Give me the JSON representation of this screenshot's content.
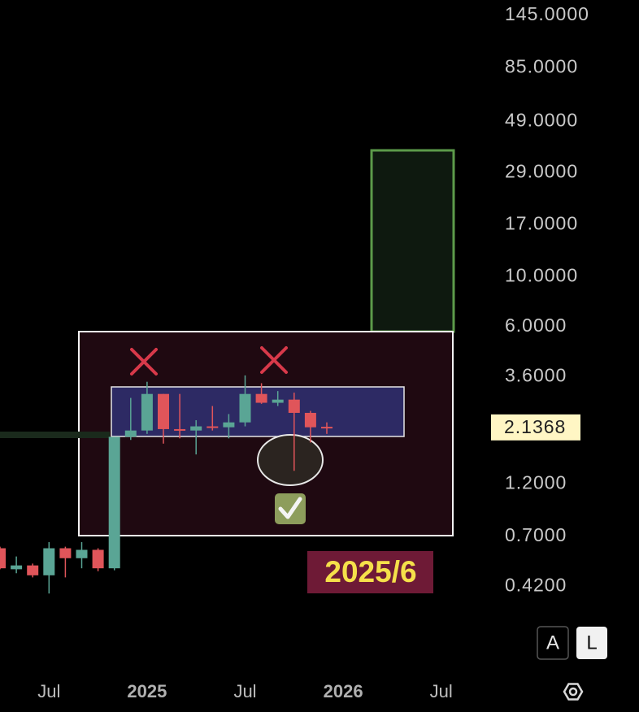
{
  "chart_data": {
    "type": "candlestick",
    "x": [
      "2024-04",
      "2024-05",
      "2024-06",
      "2024-07",
      "2024-08",
      "2024-09",
      "2024-10",
      "2024-11",
      "2024-12",
      "2025-01",
      "2025-02",
      "2025-03",
      "2025-04",
      "2025-05",
      "2025-06",
      "2025-07",
      "2025-08",
      "2025-09",
      "2025-10",
      "2025-11",
      "2025-12"
    ],
    "open": [
      0.62,
      0.5,
      0.52,
      0.47,
      0.62,
      0.56,
      0.61,
      0.505,
      1.94,
      2.07,
      3.01,
      2.1,
      2.07,
      2.16,
      2.14,
      2.25,
      3.01,
      2.75,
      2.84,
      2.48,
      2.15
    ],
    "high": [
      0.63,
      0.57,
      0.53,
      0.66,
      0.63,
      0.66,
      0.62,
      1.94,
      2.89,
      3.41,
      3.01,
      3.01,
      2.3,
      2.66,
      2.45,
      3.64,
      3.36,
      3.1,
      3.05,
      2.53,
      2.25
    ],
    "low": [
      0.5,
      0.48,
      0.46,
      0.39,
      0.46,
      0.505,
      0.49,
      0.495,
      1.88,
      2.0,
      1.81,
      1.91,
      1.62,
      2.07,
      1.91,
      2.16,
      2.72,
      2.66,
      1.37,
      1.83,
      2.0
    ],
    "close": [
      0.505,
      0.52,
      0.47,
      0.62,
      0.56,
      0.61,
      0.505,
      1.94,
      2.07,
      3.01,
      2.1,
      2.07,
      2.16,
      2.14,
      2.25,
      3.01,
      2.75,
      2.84,
      2.48,
      2.14,
      2.14
    ],
    "up_color": "#5aa595",
    "down_color": "#e0555a",
    "log_scale": true,
    "ylim": [
      0.17,
      170
    ],
    "yticks": [
      {
        "value": 145,
        "label": "145.0000"
      },
      {
        "value": 85,
        "label": "85.0000"
      },
      {
        "value": 49,
        "label": "49.0000"
      },
      {
        "value": 29,
        "label": "29.0000"
      },
      {
        "value": 17,
        "label": "17.0000"
      },
      {
        "value": 10,
        "label": "10.0000"
      },
      {
        "value": 6,
        "label": "6.0000"
      },
      {
        "value": 3.6,
        "label": "3.6000"
      },
      {
        "value": 1.2,
        "label": "1.2000"
      },
      {
        "value": 0.7,
        "label": "0.7000"
      },
      {
        "value": 0.42,
        "label": "0.4200"
      }
    ],
    "xlim": [
      "2024-04",
      "2026-10"
    ],
    "xticks": [
      {
        "value": "2024-07",
        "label": "Jul"
      },
      {
        "value": "2025-01",
        "label": "2025"
      },
      {
        "value": "2025-07",
        "label": "Jul"
      },
      {
        "value": "2026-01",
        "label": "2026"
      },
      {
        "value": "2026-07",
        "label": "Jul"
      }
    ],
    "last_price": 2.1368,
    "annotation": "2025/6"
  },
  "controls": {
    "auto": "A",
    "log": "L"
  }
}
